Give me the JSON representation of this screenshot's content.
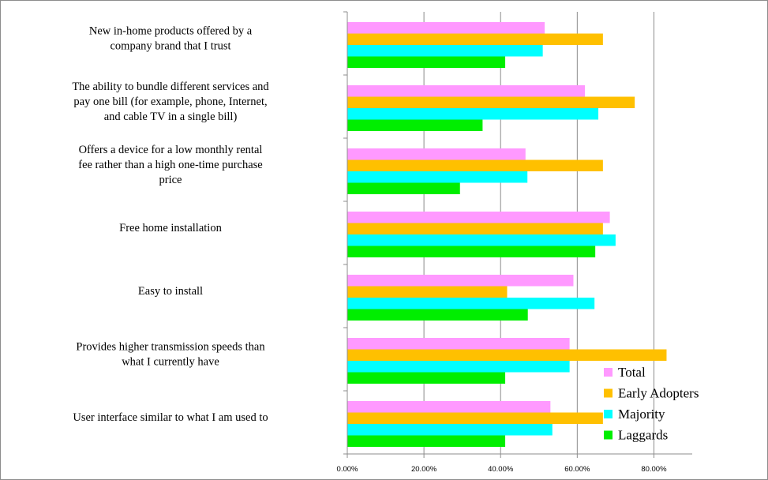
{
  "chart_data": {
    "type": "bar",
    "orientation": "horizontal",
    "categories": [
      [
        "New in-home products offered by a",
        "company brand that I trust"
      ],
      [
        "The ability to bundle different services and",
        "pay one bill (for example, phone, Internet,",
        "and cable TV in a single bill)"
      ],
      [
        "Offers a device for a low monthly rental",
        "fee rather than a high one-time purchase",
        "price"
      ],
      [
        "Free home installation"
      ],
      [
        "Easy to install"
      ],
      [
        "Provides higher transmission speeds than",
        "what I currently have"
      ],
      [
        "User interface similar to what I am used to"
      ]
    ],
    "series": [
      {
        "name": "Total",
        "color": "#ff99ff",
        "values": [
          51.5,
          62,
          46.5,
          68.5,
          59,
          58,
          53
        ]
      },
      {
        "name": "Early Adopters",
        "color": "#ffc000",
        "values": [
          66.7,
          75,
          66.7,
          66.7,
          41.7,
          83.3,
          66.7
        ]
      },
      {
        "name": "Majority",
        "color": "#00ffff",
        "values": [
          51,
          65.5,
          47,
          70,
          64.5,
          58,
          53.5
        ]
      },
      {
        "name": "Laggards",
        "color": "#00ee00",
        "values": [
          41.2,
          35.3,
          29.4,
          64.7,
          47.1,
          41.2,
          41.2
        ]
      }
    ],
    "xlim": [
      0,
      90
    ],
    "xticks": [
      0,
      20,
      40,
      60,
      80
    ],
    "xtick_labels": [
      "0.00%",
      "20.00%",
      "40.00%",
      "60.00%",
      "80.00%"
    ],
    "grid": true,
    "legend_position": "bottom-right"
  }
}
